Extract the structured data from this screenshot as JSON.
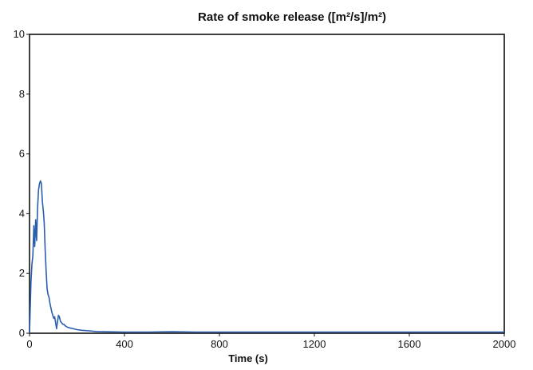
{
  "chart_data": {
    "type": "line",
    "title": "Rate of smoke release ([m²/s]/m²)",
    "xlabel": "Time (s)",
    "ylabel": "",
    "xlim": [
      0,
      2000
    ],
    "ylim": [
      0,
      10
    ],
    "xticks": [
      0,
      400,
      800,
      1200,
      1600,
      2000
    ],
    "xtick_labels": [
      "0",
      "400",
      "800",
      "1200",
      "1600",
      "2000"
    ],
    "yticks": [
      0,
      2,
      4,
      6,
      8,
      10
    ],
    "ytick_labels": [
      "0",
      "2",
      "4",
      "6",
      "8",
      "10"
    ],
    "grid": false,
    "series_color": "#2b5fae",
    "series": [
      {
        "x": [
          0,
          6,
          10,
          14,
          18,
          22,
          26,
          30,
          34,
          38,
          42,
          46,
          50,
          54,
          58,
          62,
          66,
          70,
          74,
          78,
          82,
          86,
          90,
          94,
          98,
          102,
          106,
          110,
          114,
          118,
          122,
          126,
          130,
          135,
          140,
          145,
          150,
          160,
          170,
          185,
          200,
          220,
          250,
          280,
          320,
          400,
          500,
          600,
          700,
          800,
          1000,
          1200,
          1400,
          1600,
          1800,
          2000
        ],
        "y": [
          0.0,
          1.7,
          2.3,
          2.6,
          3.6,
          2.9,
          3.8,
          3.1,
          4.2,
          4.8,
          5.0,
          5.1,
          5.0,
          4.4,
          4.1,
          3.7,
          2.8,
          2.1,
          1.5,
          1.3,
          1.2,
          1.0,
          0.85,
          0.7,
          0.6,
          0.5,
          0.55,
          0.35,
          0.15,
          0.4,
          0.6,
          0.55,
          0.4,
          0.35,
          0.3,
          0.3,
          0.25,
          0.2,
          0.18,
          0.15,
          0.12,
          0.1,
          0.08,
          0.06,
          0.05,
          0.04,
          0.04,
          0.05,
          0.04,
          0.04,
          0.04,
          0.04,
          0.04,
          0.04,
          0.04,
          0.04
        ]
      }
    ]
  }
}
